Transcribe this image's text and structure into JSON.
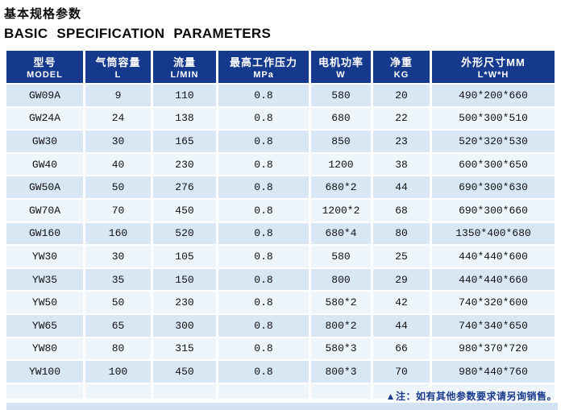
{
  "page": {
    "title_cn": "基本规格参数",
    "title_en": "BASIC SPECIFICATION PARAMETERS"
  },
  "table": {
    "columns": [
      {
        "cn": "型号",
        "en": "MODEL"
      },
      {
        "cn": "气筒容量",
        "en": "L"
      },
      {
        "cn": "流量",
        "en": "L/MIN"
      },
      {
        "cn": "最高工作压力",
        "en": "MPa"
      },
      {
        "cn": "电机功率",
        "en": "W"
      },
      {
        "cn": "净重",
        "en": "KG"
      },
      {
        "cn": "外形尺寸MM",
        "en": "L*W*H"
      }
    ],
    "rows": [
      [
        "GW09A",
        "9",
        "110",
        "0.8",
        "580",
        "20",
        "490*200*660"
      ],
      [
        "GW24A",
        "24",
        "138",
        "0.8",
        "680",
        "22",
        "500*300*510"
      ],
      [
        "GW30",
        "30",
        "165",
        "0.8",
        "850",
        "23",
        "520*320*530"
      ],
      [
        "GW40",
        "40",
        "230",
        "0.8",
        "1200",
        "38",
        "600*300*650"
      ],
      [
        "GW50A",
        "50",
        "276",
        "0.8",
        "680*2",
        "44",
        "690*300*630"
      ],
      [
        "GW70A",
        "70",
        "450",
        "0.8",
        "1200*2",
        "68",
        "690*300*660"
      ],
      [
        "GW160",
        "160",
        "520",
        "0.8",
        "680*4",
        "80",
        "1350*400*680"
      ],
      [
        "YW30",
        "30",
        "105",
        "0.8",
        "580",
        "25",
        "440*440*600"
      ],
      [
        "YW35",
        "35",
        "150",
        "0.8",
        "800",
        "29",
        "440*440*660"
      ],
      [
        "YW50",
        "50",
        "230",
        "0.8",
        "580*2",
        "42",
        "740*320*600"
      ],
      [
        "YW65",
        "65",
        "300",
        "0.8",
        "800*2",
        "44",
        "740*340*650"
      ],
      [
        "YW80",
        "80",
        "315",
        "0.8",
        "580*3",
        "66",
        "980*370*720"
      ],
      [
        "YW100",
        "100",
        "450",
        "0.8",
        "800*3",
        "70",
        "980*440*760"
      ]
    ],
    "footnote": "▲注：如有其他参数要求请另询销售。"
  },
  "colors": {
    "header_bg": "#15398d",
    "row_odd": "#d9e7f5",
    "row_even": "#eef5fb",
    "note": "#1a3a8c",
    "bottom_strip": "#d4e3f2"
  }
}
